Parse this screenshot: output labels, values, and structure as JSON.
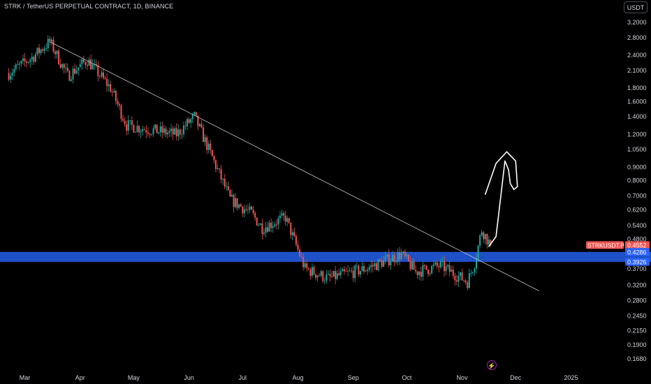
{
  "header": {
    "title": "STRK / TetherUS PERPETUAL CONTRACT, 1D, BINANCE",
    "currency": "USDT"
  },
  "colors": {
    "background": "#000000",
    "up": "#26a69a",
    "down": "#ef5350",
    "zone": "#1e50c8",
    "text": "#d1d4dc",
    "price_tag": "#ef5350",
    "level_tag": "#2962ff",
    "bolt_icon": "#9c27b0"
  },
  "icons": {
    "bolt": "lightning-icon"
  },
  "chart_data": {
    "type": "candlestick",
    "symbol": "STRKUSDT.P",
    "x_range": [
      "2024-02-20",
      "2025-01-20"
    ],
    "x_ticks": [
      {
        "label": "Mar",
        "date": "2024-03-01"
      },
      {
        "label": "Apr",
        "date": "2024-04-01"
      },
      {
        "label": "May",
        "date": "2024-05-01"
      },
      {
        "label": "Jun",
        "date": "2024-06-01"
      },
      {
        "label": "Jul",
        "date": "2024-07-01"
      },
      {
        "label": "Aug",
        "date": "2024-08-01"
      },
      {
        "label": "Sep",
        "date": "2024-09-01"
      },
      {
        "label": "Oct",
        "date": "2024-10-01"
      },
      {
        "label": "Nov",
        "date": "2024-11-01"
      },
      {
        "label": "Dec",
        "date": "2024-12-01"
      },
      {
        "label": "2025",
        "date": "2025-01-01"
      }
    ],
    "y_scale": "log",
    "y_range": [
      0.16,
      3.4
    ],
    "y_ticks": [
      "3.2000",
      "2.8000",
      "2.4000",
      "2.1000",
      "1.8000",
      "1.6000",
      "1.4000",
      "1.2000",
      "1.0500",
      "0.9000",
      "0.8000",
      "0.7000",
      "0.6200",
      "0.5400",
      "0.4800",
      "0.3700",
      "0.3200",
      "0.2800",
      "0.2450",
      "0.2150",
      "0.1900",
      "0.1680"
    ],
    "anchors": [
      {
        "date": "2024-02-21",
        "price": 2.05
      },
      {
        "date": "2024-03-05",
        "price": 2.35
      },
      {
        "date": "2024-03-15",
        "price": 2.7
      },
      {
        "date": "2024-03-25",
        "price": 2.0
      },
      {
        "date": "2024-04-05",
        "price": 2.3
      },
      {
        "date": "2024-04-18",
        "price": 1.8
      },
      {
        "date": "2024-04-27",
        "price": 1.3
      },
      {
        "date": "2024-05-10",
        "price": 1.25
      },
      {
        "date": "2024-05-25",
        "price": 1.2
      },
      {
        "date": "2024-06-04",
        "price": 1.4
      },
      {
        "date": "2024-06-14",
        "price": 0.98
      },
      {
        "date": "2024-06-24",
        "price": 0.68
      },
      {
        "date": "2024-07-06",
        "price": 0.6
      },
      {
        "date": "2024-07-12",
        "price": 0.53
      },
      {
        "date": "2024-07-25",
        "price": 0.58
      },
      {
        "date": "2024-08-05",
        "price": 0.37
      },
      {
        "date": "2024-08-18",
        "price": 0.34
      },
      {
        "date": "2024-09-08",
        "price": 0.37
      },
      {
        "date": "2024-09-28",
        "price": 0.42
      },
      {
        "date": "2024-10-06",
        "price": 0.36
      },
      {
        "date": "2024-10-20",
        "price": 0.38
      },
      {
        "date": "2024-11-04",
        "price": 0.33
      },
      {
        "date": "2024-11-08",
        "price": 0.39
      },
      {
        "date": "2024-11-12",
        "price": 0.52
      },
      {
        "date": "2024-11-17",
        "price": 0.4552
      }
    ],
    "zone": {
      "low": 0.3926,
      "high": 0.4286
    },
    "trendline": {
      "start": {
        "date": "2024-03-15",
        "price": 2.7
      },
      "end": {
        "date": "2024-12-14",
        "price": 0.305
      }
    },
    "projection": [
      {
        "date": "2024-11-16",
        "price": 0.45
      },
      {
        "date": "2024-11-20",
        "price": 0.49
      },
      {
        "date": "2024-11-25",
        "price": 0.95
      },
      {
        "date": "2024-11-27",
        "price": 0.88
      },
      {
        "date": "2024-11-28",
        "price": 0.78
      },
      {
        "date": "2024-11-30",
        "price": 0.74
      },
      {
        "date": "2024-12-02",
        "price": 0.76
      },
      {
        "date": "2024-12-01",
        "price": 0.95
      },
      {
        "date": "2024-11-26",
        "price": 1.03
      },
      {
        "date": "2024-11-20",
        "price": 0.93
      },
      {
        "date": "2024-11-14",
        "price": 0.71
      }
    ],
    "price_labels": [
      {
        "symbol": "STRKUSDT.P",
        "value": "0.4552"
      },
      {
        "value": "0.4286"
      },
      {
        "value": "0.3926"
      }
    ]
  }
}
